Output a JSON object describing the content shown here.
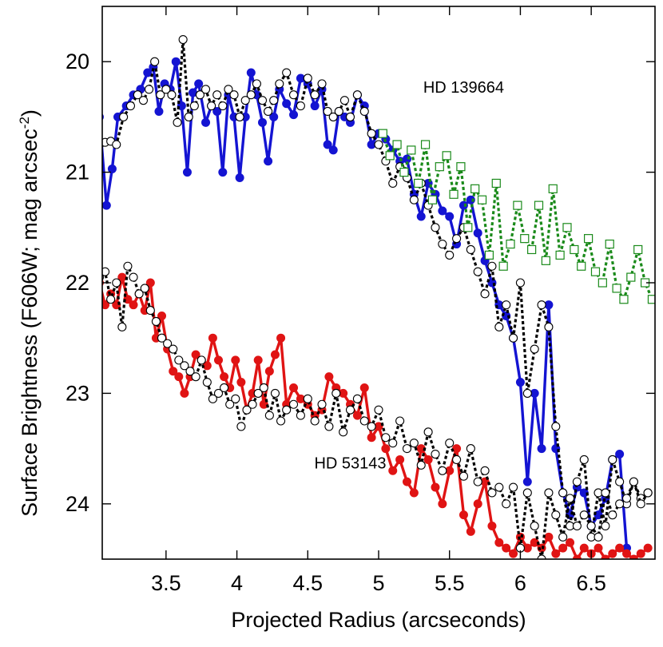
{
  "chart_data": {
    "type": "line",
    "title": "",
    "xlabel": "Projected Radius (arcseconds)",
    "ylabel": "Surface Brightness (F606W; mag arcsec",
    "ylabel_sup": "-2",
    "ylabel_end": ")",
    "xlim": [
      3.05,
      6.95
    ],
    "ylim": [
      24.5,
      19.5
    ],
    "y_inverted": true,
    "xticks": [
      3.5,
      4,
      4.5,
      5,
      5.5,
      6,
      6.5
    ],
    "xtick_labels": [
      "3.5",
      "4",
      "4.5",
      "5",
      "5.5",
      "6",
      "6.5"
    ],
    "yticks": [
      20,
      21,
      22,
      23,
      24
    ],
    "ytick_labels": [
      "20",
      "21",
      "22",
      "23",
      "24"
    ],
    "grid": false,
    "annotations": [
      {
        "text": "HD 139664",
        "x": 5.6,
        "y": 20.28
      },
      {
        "text": "HD 53143",
        "x": 4.8,
        "y": 23.68
      }
    ],
    "colors": {
      "blue": "#1414d2",
      "black": "#000000",
      "green": "#1a8a1a",
      "red": "#e01414"
    },
    "series": [
      {
        "name": "HD 139664 blue",
        "color": "#1414d2",
        "style": "solid",
        "marker": "filled-circle",
        "x": [
          3.03,
          3.08,
          3.12,
          3.16,
          3.22,
          3.27,
          3.32,
          3.37,
          3.41,
          3.45,
          3.49,
          3.53,
          3.57,
          3.61,
          3.65,
          3.69,
          3.73,
          3.78,
          3.82,
          3.86,
          3.9,
          3.94,
          3.98,
          4.02,
          4.06,
          4.1,
          4.14,
          4.18,
          4.22,
          4.26,
          4.3,
          4.35,
          4.4,
          4.45,
          4.5,
          4.55,
          4.6,
          4.64,
          4.68,
          4.72,
          4.76,
          4.8,
          4.85,
          4.9,
          4.95,
          5.0,
          5.05,
          5.1,
          5.15,
          5.2,
          5.25,
          5.3,
          5.35,
          5.4,
          5.45,
          5.5,
          5.55,
          5.6,
          5.65,
          5.7,
          5.75,
          5.8,
          5.85,
          5.9,
          5.95,
          6.0,
          6.05,
          6.1,
          6.15,
          6.2,
          6.25,
          6.3,
          6.35,
          6.4,
          6.45,
          6.5,
          6.55,
          6.6,
          6.65,
          6.7,
          6.75
        ],
        "y": [
          20.5,
          21.3,
          20.97,
          20.5,
          20.4,
          20.3,
          20.25,
          20.1,
          20.05,
          20.45,
          20.2,
          20.25,
          20.0,
          20.4,
          21.0,
          20.28,
          20.2,
          20.55,
          20.4,
          20.45,
          21.0,
          20.3,
          20.5,
          21.05,
          20.5,
          20.1,
          20.3,
          20.55,
          20.9,
          20.5,
          20.25,
          20.38,
          20.48,
          20.15,
          20.2,
          20.4,
          20.25,
          20.75,
          20.8,
          20.45,
          20.5,
          20.55,
          20.3,
          20.4,
          20.75,
          20.65,
          20.7,
          20.8,
          20.9,
          20.88,
          21.2,
          21.4,
          21.1,
          21.2,
          21.35,
          21.4,
          21.65,
          21.3,
          21.25,
          21.55,
          21.8,
          22.0,
          22.2,
          22.3,
          22.5,
          22.9,
          23.8,
          23.0,
          23.5,
          22.2,
          23.5,
          23.9,
          24.1,
          23.85,
          23.9,
          24.2,
          24.1,
          23.95,
          23.6,
          23.55,
          24.4
        ]
      },
      {
        "name": "HD 139664 black",
        "color": "#000000",
        "style": "dotted",
        "marker": "open-circle",
        "x": [
          3.03,
          3.07,
          3.11,
          3.15,
          3.2,
          3.25,
          3.3,
          3.34,
          3.38,
          3.42,
          3.46,
          3.5,
          3.54,
          3.58,
          3.62,
          3.66,
          3.7,
          3.74,
          3.78,
          3.82,
          3.86,
          3.9,
          3.94,
          3.98,
          4.02,
          4.06,
          4.1,
          4.14,
          4.18,
          4.22,
          4.26,
          4.3,
          4.35,
          4.4,
          4.45,
          4.5,
          4.55,
          4.6,
          4.64,
          4.68,
          4.72,
          4.76,
          4.8,
          4.85,
          4.9,
          4.95,
          5.0,
          5.05,
          5.1,
          5.15,
          5.2,
          5.25,
          5.3,
          5.35,
          5.4,
          5.45,
          5.5,
          5.55,
          5.6,
          5.65,
          5.7,
          5.75,
          5.8,
          5.85,
          5.9,
          5.95,
          6.0,
          6.05,
          6.1,
          6.15,
          6.2,
          6.25,
          6.3,
          6.35,
          6.4,
          6.45,
          6.5,
          6.55,
          6.6,
          6.65,
          6.7,
          6.75,
          6.8,
          6.85,
          6.9
        ],
        "y": [
          20.75,
          20.73,
          20.72,
          20.75,
          20.5,
          20.4,
          20.3,
          20.35,
          20.25,
          20.0,
          20.3,
          20.25,
          20.3,
          20.55,
          19.8,
          20.5,
          20.4,
          20.3,
          20.25,
          20.4,
          20.3,
          20.4,
          20.25,
          20.3,
          20.5,
          20.35,
          20.3,
          20.2,
          20.35,
          20.45,
          20.35,
          20.2,
          20.1,
          20.3,
          20.4,
          20.15,
          20.3,
          20.2,
          20.45,
          20.5,
          20.45,
          20.35,
          20.5,
          20.3,
          20.45,
          20.65,
          20.75,
          20.9,
          21.1,
          20.95,
          21.05,
          21.25,
          21.1,
          21.3,
          21.5,
          21.65,
          21.75,
          21.6,
          21.5,
          21.7,
          21.9,
          22.1,
          21.85,
          22.4,
          22.2,
          22.5,
          22.0,
          23.0,
          22.6,
          22.2,
          22.4,
          23.3,
          23.9,
          24.2,
          23.8,
          23.6,
          24.3,
          23.9,
          24.2,
          23.6,
          23.8,
          24.0,
          23.8,
          23.95,
          23.9
        ]
      },
      {
        "name": "HD 139664 green",
        "color": "#1a8a1a",
        "style": "dotted",
        "marker": "open-square",
        "x": [
          5.03,
          5.08,
          5.13,
          5.18,
          5.23,
          5.28,
          5.33,
          5.38,
          5.43,
          5.48,
          5.53,
          5.58,
          5.63,
          5.68,
          5.73,
          5.78,
          5.83,
          5.88,
          5.93,
          5.98,
          6.03,
          6.08,
          6.13,
          6.18,
          6.23,
          6.28,
          6.33,
          6.38,
          6.43,
          6.48,
          6.53,
          6.58,
          6.63,
          6.68,
          6.73,
          6.78,
          6.83,
          6.88,
          6.93
        ],
        "y": [
          20.65,
          20.85,
          20.75,
          21.0,
          20.8,
          21.1,
          20.75,
          21.25,
          20.95,
          20.85,
          21.2,
          20.95,
          21.5,
          21.15,
          21.25,
          21.75,
          21.1,
          21.85,
          21.65,
          21.3,
          21.6,
          21.7,
          21.3,
          21.8,
          21.15,
          21.75,
          21.5,
          21.7,
          21.85,
          21.6,
          21.9,
          22.0,
          21.65,
          22.05,
          22.15,
          21.95,
          21.7,
          22.0,
          22.15
        ]
      },
      {
        "name": "HD 53143 red",
        "color": "#e01414",
        "style": "solid",
        "marker": "filled-circle",
        "x": [
          3.03,
          3.07,
          3.11,
          3.15,
          3.19,
          3.23,
          3.27,
          3.31,
          3.35,
          3.39,
          3.43,
          3.47,
          3.51,
          3.55,
          3.59,
          3.63,
          3.67,
          3.71,
          3.75,
          3.79,
          3.83,
          3.87,
          3.91,
          3.95,
          3.99,
          4.03,
          4.07,
          4.11,
          4.15,
          4.19,
          4.23,
          4.27,
          4.31,
          4.35,
          4.4,
          4.45,
          4.5,
          4.55,
          4.6,
          4.65,
          4.7,
          4.75,
          4.8,
          4.85,
          4.9,
          4.95,
          5.0,
          5.05,
          5.1,
          5.15,
          5.2,
          5.25,
          5.3,
          5.35,
          5.4,
          5.45,
          5.5,
          5.55,
          5.6,
          5.65,
          5.7,
          5.75,
          5.8,
          5.85,
          5.9,
          5.95,
          6.0,
          6.05,
          6.1,
          6.15,
          6.2,
          6.25,
          6.3,
          6.35,
          6.4,
          6.45,
          6.5,
          6.55,
          6.6,
          6.65,
          6.7,
          6.75,
          6.8,
          6.85,
          6.9
        ],
        "y": [
          22.0,
          22.2,
          22.1,
          22.2,
          21.95,
          22.15,
          22.2,
          22.1,
          22.25,
          22.0,
          22.5,
          22.3,
          22.6,
          22.8,
          22.85,
          23.0,
          22.85,
          22.65,
          22.7,
          22.75,
          22.5,
          22.7,
          22.85,
          22.95,
          22.7,
          22.9,
          23.15,
          23.0,
          22.7,
          23.1,
          22.8,
          22.65,
          22.5,
          23.1,
          22.95,
          23.05,
          23.1,
          23.2,
          23.15,
          22.85,
          22.95,
          23.0,
          23.1,
          23.2,
          22.95,
          23.4,
          23.3,
          23.5,
          23.7,
          23.6,
          23.8,
          23.9,
          23.5,
          23.6,
          23.85,
          24.0,
          23.7,
          23.5,
          24.1,
          24.25,
          24.0,
          23.8,
          24.2,
          24.35,
          24.4,
          24.45,
          24.3,
          24.4,
          24.35,
          24.4,
          24.3,
          24.45,
          24.4,
          24.35,
          24.5,
          24.4,
          24.45,
          24.4,
          24.5,
          24.45,
          24.4,
          24.45,
          24.5,
          24.45,
          24.4
        ]
      },
      {
        "name": "HD 53143 black",
        "color": "#000000",
        "style": "dotted",
        "marker": "open-circle",
        "x": [
          3.03,
          3.07,
          3.11,
          3.15,
          3.19,
          3.23,
          3.27,
          3.31,
          3.35,
          3.39,
          3.43,
          3.47,
          3.51,
          3.55,
          3.59,
          3.63,
          3.67,
          3.71,
          3.75,
          3.79,
          3.83,
          3.87,
          3.91,
          3.95,
          3.99,
          4.03,
          4.07,
          4.11,
          4.15,
          4.19,
          4.23,
          4.27,
          4.31,
          4.35,
          4.4,
          4.45,
          4.5,
          4.55,
          4.6,
          4.65,
          4.7,
          4.75,
          4.8,
          4.85,
          4.9,
          4.95,
          5.0,
          5.05,
          5.1,
          5.15,
          5.2,
          5.25,
          5.3,
          5.35,
          5.4,
          5.45,
          5.5,
          5.55,
          5.6,
          5.65,
          5.7,
          5.75,
          5.8,
          5.85,
          5.9,
          5.95,
          6.0,
          6.05,
          6.1,
          6.15,
          6.2,
          6.25,
          6.3,
          6.35,
          6.4,
          6.45,
          6.5,
          6.55,
          6.6,
          6.65,
          6.7,
          6.75,
          6.8,
          6.85,
          6.9
        ],
        "y": [
          21.95,
          21.9,
          22.15,
          22.0,
          22.4,
          21.85,
          21.95,
          22.1,
          22.05,
          22.25,
          22.35,
          22.5,
          22.55,
          22.6,
          22.7,
          22.75,
          22.8,
          22.85,
          22.7,
          22.9,
          23.05,
          23.0,
          22.95,
          23.1,
          23.05,
          23.3,
          23.15,
          23.1,
          23.0,
          22.95,
          23.2,
          23.0,
          23.25,
          23.15,
          23.1,
          23.2,
          23.05,
          23.25,
          23.1,
          23.3,
          23.0,
          23.35,
          23.15,
          23.05,
          23.25,
          23.3,
          23.15,
          23.4,
          23.45,
          23.25,
          23.5,
          23.45,
          23.65,
          23.35,
          23.55,
          23.7,
          23.45,
          23.6,
          23.75,
          23.5,
          23.8,
          23.7,
          23.9,
          23.85,
          24.0,
          23.85,
          24.4,
          23.9,
          24.2,
          24.5,
          23.9,
          24.1,
          24.3,
          23.95,
          24.2,
          24.1,
          24.2,
          24.3,
          23.9,
          24.1,
          24.0,
          23.95,
          23.8,
          24.0,
          23.9
        ]
      }
    ]
  }
}
